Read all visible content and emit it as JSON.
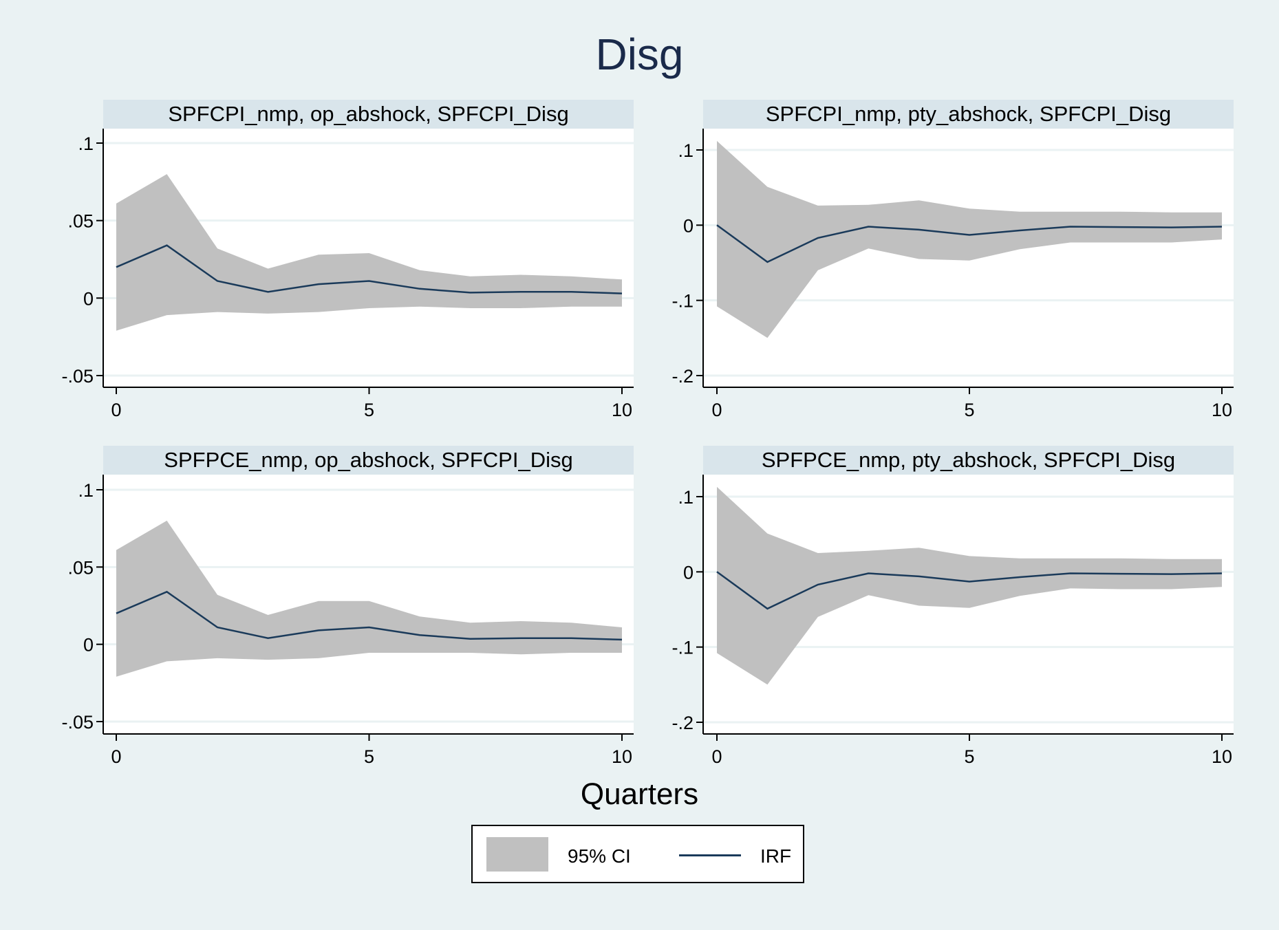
{
  "title": "Disg",
  "xlabel": "Quarters",
  "legend": {
    "ci_label": "95% CI",
    "irf_label": "IRF"
  },
  "colors": {
    "background": "#eaf2f3",
    "header": "#d9e5eb",
    "ci_band": "#c0c0c0",
    "irf_line": "#1a3a5a"
  },
  "chart_data": [
    {
      "type": "area",
      "title": "SPFCPI_nmp, op_abshock, SPFCPI_Disg",
      "x": [
        0,
        1,
        2,
        3,
        4,
        5,
        6,
        7,
        8,
        9,
        10
      ],
      "irf": [
        0.02,
        0.034,
        0.011,
        0.004,
        0.009,
        0.011,
        0.006,
        0.0035,
        0.004,
        0.004,
        0.003
      ],
      "ci_lower": [
        -0.021,
        -0.011,
        -0.009,
        -0.01,
        -0.009,
        -0.0065,
        -0.0055,
        -0.0065,
        -0.0065,
        -0.0055,
        -0.0055
      ],
      "ci_upper": [
        0.061,
        0.08,
        0.032,
        0.019,
        0.028,
        0.029,
        0.018,
        0.014,
        0.015,
        0.014,
        0.012
      ],
      "xlim": [
        0,
        10
      ],
      "ylim": [
        -0.05,
        0.1
      ],
      "xticks": [
        "0",
        "5",
        "10"
      ],
      "yticks": [
        ".1",
        ".05",
        "0",
        "-.05"
      ]
    },
    {
      "type": "area",
      "title": "SPFCPI_nmp, pty_abshock, SPFCPI_Disg",
      "x": [
        0,
        1,
        2,
        3,
        4,
        5,
        6,
        7,
        8,
        9,
        10
      ],
      "irf": [
        0.0,
        -0.049,
        -0.017,
        -0.002,
        -0.006,
        -0.013,
        -0.007,
        -0.002,
        -0.0025,
        -0.003,
        -0.002
      ],
      "ci_lower": [
        -0.108,
        -0.15,
        -0.06,
        -0.031,
        -0.045,
        -0.047,
        -0.032,
        -0.023,
        -0.023,
        -0.023,
        -0.019
      ],
      "ci_upper": [
        0.112,
        0.051,
        0.026,
        0.027,
        0.033,
        0.022,
        0.018,
        0.018,
        0.018,
        0.017,
        0.017
      ],
      "xlim": [
        0,
        10
      ],
      "ylim": [
        -0.2,
        0.1
      ],
      "xticks": [
        "0",
        "5",
        "10"
      ],
      "yticks": [
        ".1",
        "0",
        "-.1",
        "-.2"
      ]
    },
    {
      "type": "area",
      "title": "SPFPCE_nmp, op_abshock, SPFCPI_Disg",
      "x": [
        0,
        1,
        2,
        3,
        4,
        5,
        6,
        7,
        8,
        9,
        10
      ],
      "irf": [
        0.02,
        0.034,
        0.011,
        0.004,
        0.009,
        0.011,
        0.006,
        0.0035,
        0.004,
        0.004,
        0.003
      ],
      "ci_lower": [
        -0.021,
        -0.011,
        -0.009,
        -0.01,
        -0.009,
        -0.0055,
        -0.0055,
        -0.0055,
        -0.0065,
        -0.0055,
        -0.0055
      ],
      "ci_upper": [
        0.061,
        0.08,
        0.032,
        0.019,
        0.028,
        0.028,
        0.018,
        0.014,
        0.015,
        0.014,
        0.011
      ],
      "xlim": [
        0,
        10
      ],
      "ylim": [
        -0.05,
        0.1
      ],
      "xticks": [
        "0",
        "5",
        "10"
      ],
      "yticks": [
        ".1",
        ".05",
        "0",
        "-.05"
      ]
    },
    {
      "type": "area",
      "title": "SPFPCE_nmp, pty_abshock, SPFCPI_Disg",
      "x": [
        0,
        1,
        2,
        3,
        4,
        5,
        6,
        7,
        8,
        9,
        10
      ],
      "irf": [
        0.0,
        -0.049,
        -0.017,
        -0.002,
        -0.006,
        -0.013,
        -0.007,
        -0.002,
        -0.0025,
        -0.003,
        -0.002
      ],
      "ci_lower": [
        -0.108,
        -0.15,
        -0.06,
        -0.031,
        -0.045,
        -0.048,
        -0.032,
        -0.022,
        -0.023,
        -0.023,
        -0.02
      ],
      "ci_upper": [
        0.113,
        0.051,
        0.025,
        0.028,
        0.032,
        0.021,
        0.018,
        0.018,
        0.018,
        0.017,
        0.017
      ],
      "xlim": [
        0,
        10
      ],
      "ylim": [
        -0.2,
        0.1
      ],
      "xticks": [
        "0",
        "5",
        "10"
      ],
      "yticks": [
        ".1",
        "0",
        "-.1",
        "-.2"
      ]
    }
  ]
}
